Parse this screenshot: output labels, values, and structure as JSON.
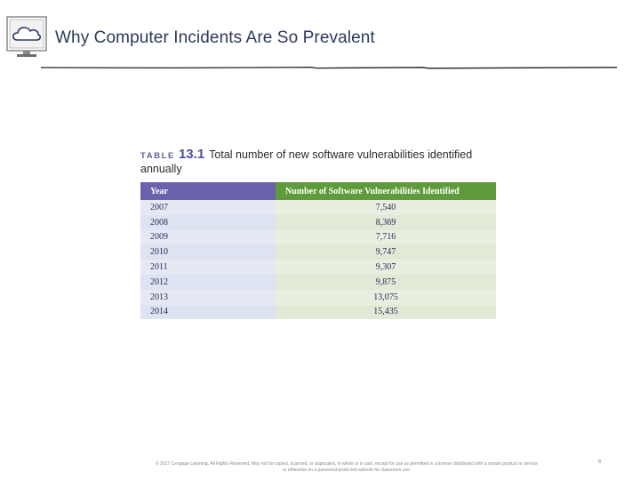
{
  "slide": {
    "title": "Why Computer Incidents Are So Prevalent",
    "logo_icon": "cloud-computer-icon",
    "colors": {
      "title": "#2b3a5c",
      "rule": "#222222"
    }
  },
  "table": {
    "caption_prefix": "TABLE",
    "caption_number": "13.1",
    "caption_text": "Total number of new software vulnerabilities identified annually",
    "headers": [
      "Year",
      "Number of Software Vulnerabilities Identified"
    ],
    "header_colors": {
      "year": "#6a62ad",
      "count": "#5f9b3a"
    },
    "rows": [
      {
        "year": "2007",
        "count": "7,540"
      },
      {
        "year": "2008",
        "count": "8,369"
      },
      {
        "year": "2009",
        "count": "7,716"
      },
      {
        "year": "2010",
        "count": "9,747"
      },
      {
        "year": "2011",
        "count": "9,307"
      },
      {
        "year": "2012",
        "count": "9,875"
      },
      {
        "year": "2013",
        "count": "13,075"
      },
      {
        "year": "2014",
        "count": "15,435"
      }
    ]
  },
  "footer": {
    "copyright_line1": "© 2017 Cengage Learning. All Rights Reserved. May not be copied, scanned, or duplicated, in whole or in part, except for use as permitted in a license distributed with a certain product or service",
    "copyright_line2": "or otherwise on a password-protected website for classroom use.",
    "page_number": "6"
  }
}
